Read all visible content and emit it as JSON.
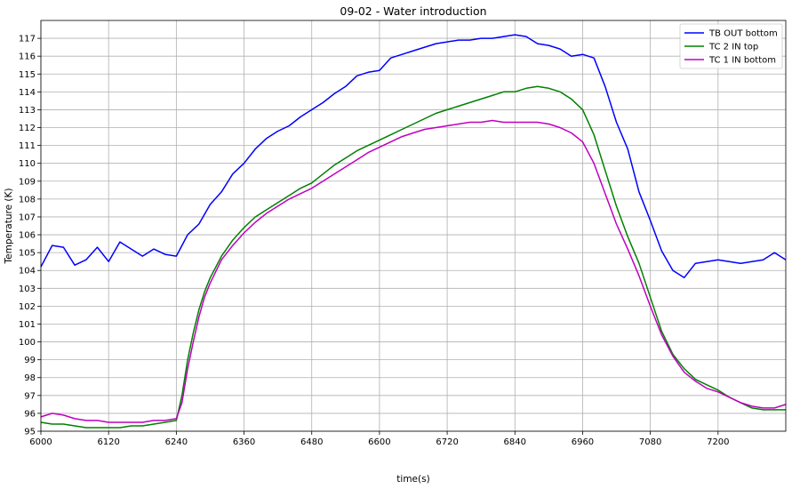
{
  "chart_data": {
    "type": "line",
    "title": "09-02 - Water introduction",
    "xlabel": "time(s)",
    "ylabel": "Temperature (K)",
    "xlim": [
      6000,
      7320
    ],
    "ylim": [
      95,
      118
    ],
    "grid": true,
    "legend_position": "top-right",
    "xticks": [
      6000,
      6120,
      6240,
      6360,
      6480,
      6600,
      6720,
      6840,
      6960,
      7080,
      7200
    ],
    "yticks": [
      95,
      96,
      97,
      98,
      99,
      100,
      101,
      102,
      103,
      104,
      105,
      106,
      107,
      108,
      109,
      110,
      111,
      112,
      113,
      114,
      115,
      116,
      117
    ],
    "series": [
      {
        "name": "TB OUT bottom",
        "color": "#0000ff",
        "x": [
          6000,
          6020,
          6040,
          6060,
          6080,
          6100,
          6120,
          6140,
          6160,
          6180,
          6200,
          6220,
          6240,
          6260,
          6280,
          6300,
          6320,
          6340,
          6360,
          6380,
          6400,
          6420,
          6440,
          6460,
          6480,
          6500,
          6520,
          6540,
          6560,
          6580,
          6600,
          6620,
          6640,
          6660,
          6680,
          6700,
          6720,
          6740,
          6760,
          6780,
          6800,
          6820,
          6840,
          6860,
          6880,
          6900,
          6920,
          6940,
          6960,
          6980,
          7000,
          7020,
          7040,
          7060,
          7080,
          7100,
          7120,
          7140,
          7160,
          7180,
          7200,
          7220,
          7240,
          7260,
          7280,
          7300,
          7320
        ],
        "y": [
          104.2,
          105.4,
          105.3,
          104.3,
          104.6,
          105.3,
          104.5,
          105.6,
          105.2,
          104.8,
          105.2,
          104.9,
          104.8,
          106.0,
          106.6,
          107.7,
          108.4,
          109.4,
          110.0,
          110.8,
          111.4,
          111.8,
          112.1,
          112.6,
          113.0,
          113.4,
          113.9,
          114.3,
          114.9,
          115.1,
          115.2,
          115.9,
          116.1,
          116.3,
          116.5,
          116.7,
          116.8,
          116.9,
          116.9,
          117.0,
          117.0,
          117.1,
          117.2,
          117.1,
          116.7,
          116.6,
          116.4,
          116.0,
          116.1,
          115.9,
          114.3,
          112.3,
          110.8,
          108.4,
          106.8,
          105.1,
          104.0,
          103.6,
          104.4,
          104.5,
          104.6,
          104.5,
          104.4,
          104.5,
          104.6,
          105.0,
          104.6
        ]
      },
      {
        "name": "TC 2 IN top",
        "color": "#008000",
        "x": [
          6000,
          6020,
          6040,
          6060,
          6080,
          6100,
          6120,
          6140,
          6160,
          6180,
          6200,
          6220,
          6240,
          6250,
          6260,
          6270,
          6280,
          6290,
          6300,
          6320,
          6340,
          6360,
          6380,
          6400,
          6420,
          6440,
          6460,
          6480,
          6500,
          6520,
          6540,
          6560,
          6580,
          6600,
          6620,
          6640,
          6660,
          6680,
          6700,
          6720,
          6740,
          6760,
          6780,
          6800,
          6820,
          6840,
          6860,
          6880,
          6900,
          6920,
          6940,
          6960,
          6980,
          7000,
          7020,
          7040,
          7060,
          7080,
          7100,
          7120,
          7140,
          7160,
          7180,
          7200,
          7220,
          7240,
          7260,
          7280,
          7300,
          7320
        ],
        "y": [
          95.5,
          95.4,
          95.4,
          95.3,
          95.2,
          95.2,
          95.2,
          95.2,
          95.3,
          95.3,
          95.4,
          95.5,
          95.6,
          97.0,
          99.0,
          100.5,
          101.8,
          102.8,
          103.6,
          104.8,
          105.7,
          106.4,
          107.0,
          107.4,
          107.8,
          108.2,
          108.6,
          108.9,
          109.4,
          109.9,
          110.3,
          110.7,
          111.0,
          111.3,
          111.6,
          111.9,
          112.2,
          112.5,
          112.8,
          113.0,
          113.2,
          113.4,
          113.6,
          113.8,
          114.0,
          114.0,
          114.2,
          114.3,
          114.2,
          114.0,
          113.6,
          113.0,
          111.6,
          109.6,
          107.6,
          105.9,
          104.4,
          102.5,
          100.6,
          99.3,
          98.5,
          97.9,
          97.6,
          97.3,
          96.9,
          96.6,
          96.3,
          96.2,
          96.2,
          96.2
        ]
      },
      {
        "name": "TC 1 IN bottom",
        "color": "#bf00bf",
        "x": [
          6000,
          6020,
          6040,
          6060,
          6080,
          6100,
          6120,
          6140,
          6160,
          6180,
          6200,
          6220,
          6240,
          6250,
          6260,
          6270,
          6280,
          6290,
          6300,
          6320,
          6340,
          6360,
          6380,
          6400,
          6420,
          6440,
          6460,
          6480,
          6500,
          6520,
          6540,
          6560,
          6580,
          6600,
          6620,
          6640,
          6660,
          6680,
          6700,
          6720,
          6740,
          6760,
          6780,
          6800,
          6820,
          6840,
          6860,
          6880,
          6900,
          6920,
          6940,
          6960,
          6980,
          7000,
          7020,
          7040,
          7060,
          7080,
          7100,
          7120,
          7140,
          7160,
          7180,
          7200,
          7220,
          7240,
          7260,
          7280,
          7300,
          7320
        ],
        "y": [
          95.8,
          96.0,
          95.9,
          95.7,
          95.6,
          95.6,
          95.5,
          95.5,
          95.5,
          95.5,
          95.6,
          95.6,
          95.7,
          96.6,
          98.5,
          100.0,
          101.4,
          102.5,
          103.3,
          104.6,
          105.4,
          106.1,
          106.7,
          107.2,
          107.6,
          108.0,
          108.3,
          108.6,
          109.0,
          109.4,
          109.8,
          110.2,
          110.6,
          110.9,
          111.2,
          111.5,
          111.7,
          111.9,
          112.0,
          112.1,
          112.2,
          112.3,
          112.3,
          112.4,
          112.3,
          112.3,
          112.3,
          112.3,
          112.2,
          112.0,
          111.7,
          111.2,
          110.0,
          108.3,
          106.6,
          105.2,
          103.7,
          102.0,
          100.4,
          99.2,
          98.3,
          97.8,
          97.4,
          97.2,
          96.9,
          96.6,
          96.4,
          96.3,
          96.3,
          96.5
        ]
      }
    ]
  }
}
